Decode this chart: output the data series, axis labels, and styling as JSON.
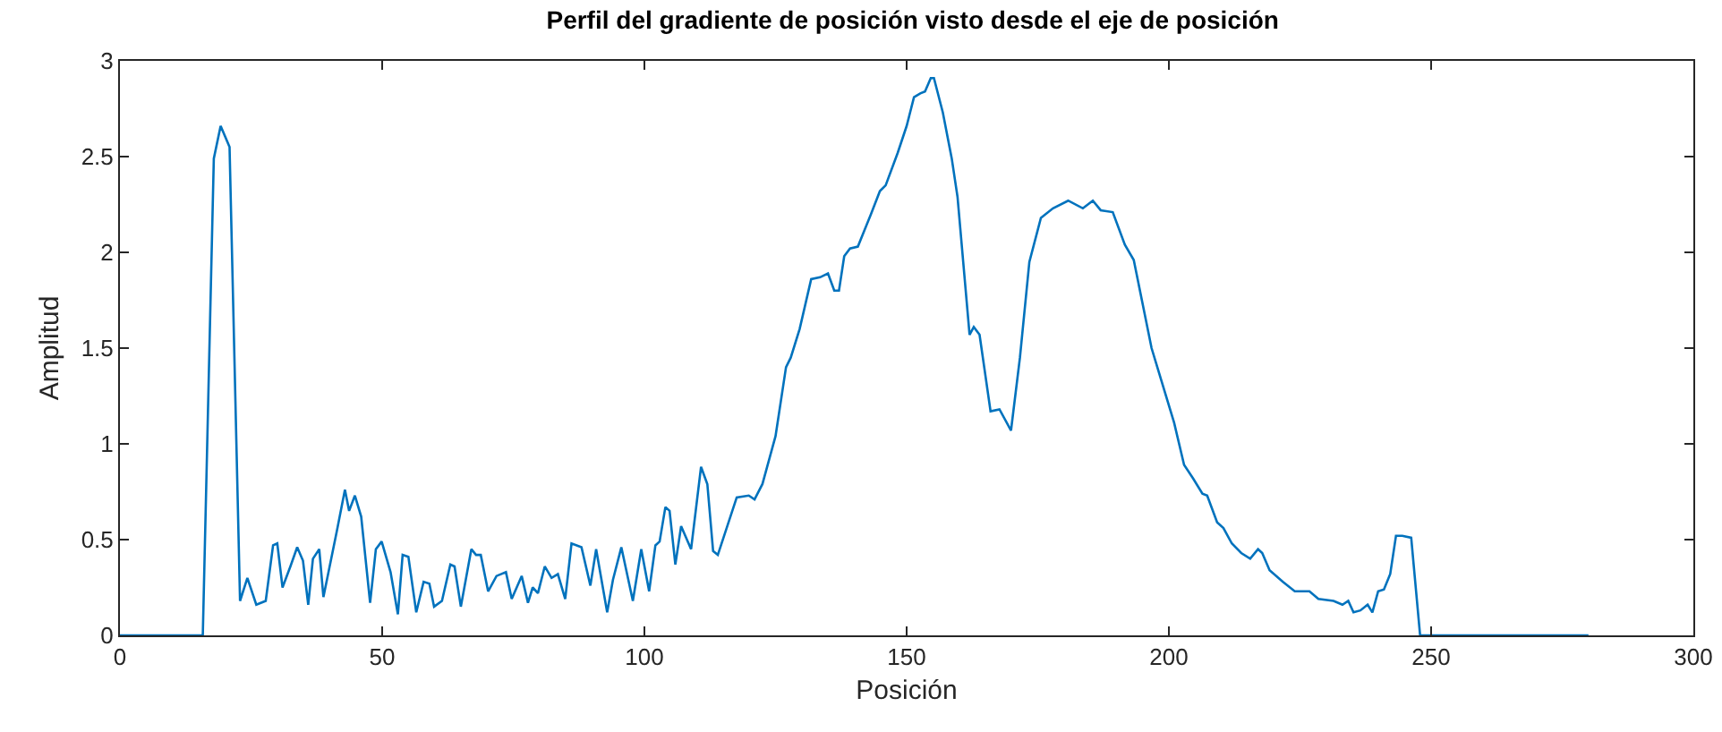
{
  "chart_data": {
    "type": "line",
    "title": "Perfil del gradiente de posición visto desde el eje de posición",
    "xlabel": "Posición",
    "ylabel": "Amplitud",
    "xlim": [
      0,
      300
    ],
    "xticks": [
      0,
      50,
      100,
      150,
      200,
      250,
      300
    ],
    "ylim": [
      0,
      3
    ],
    "yticks": [
      0,
      0.5,
      1,
      1.5,
      2,
      2.5,
      3
    ],
    "grid": false,
    "marker": "none",
    "line_style": "solid",
    "series": [
      {
        "color": "#0072bd",
        "x": [
          0,
          15.8,
          17.9,
          19.2,
          20.9,
          22.9,
          24.3,
          26,
          27.8,
          29.2,
          30,
          31,
          32.5,
          33.8,
          34.9,
          35.9,
          36.8,
          38,
          38.8,
          41.4,
          42.9,
          43.7,
          44.8,
          46,
          47.7,
          48.8,
          49.9,
          51.6,
          53,
          53.9,
          55,
          56.5,
          57.9,
          59,
          59.9,
          61.4,
          63,
          63.8,
          65,
          67,
          67.9,
          68.8,
          70.2,
          71.8,
          73.6,
          74.7,
          76.6,
          77.8,
          78.7,
          79.7,
          81,
          82.3,
          83.5,
          84.9,
          86.1,
          88,
          89.7,
          90.8,
          92.9,
          94,
          95.6,
          97.8,
          99.4,
          100.9,
          102.1,
          102.9,
          104,
          104.8,
          105.9,
          107,
          108.9,
          110.8,
          112,
          113.1,
          114,
          117.6,
          119.9,
          121,
          122.5,
          125,
          127,
          127.9,
          129.6,
          131.8,
          133.5,
          135,
          136.2,
          137.1,
          138.1,
          139.2,
          140.7,
          143.2,
          144.9,
          146,
          148.3,
          150,
          151.4,
          152.6,
          153.5,
          154.6,
          155.2,
          156.9,
          158.6,
          159.7,
          162,
          162.8,
          163.9,
          166,
          167.7,
          169.9,
          171.6,
          173.4,
          175.6,
          177.9,
          180.8,
          183.6,
          185.5,
          187,
          189.3,
          191.6,
          193.3,
          196.7,
          197.8,
          201,
          202.9,
          204.6,
          206.4,
          207.3,
          209.2,
          210.4,
          212,
          213.8,
          215.5,
          217,
          217.8,
          219.2,
          221.7,
          224,
          225.7,
          226.8,
          228.5,
          231.4,
          233.1,
          234.2,
          235.2,
          236.5,
          237.9,
          238.8,
          239.9,
          241,
          242.2,
          243.3,
          244.5,
          246.2,
          247.9,
          280
        ],
        "values": [
          0,
          0,
          2.49,
          2.66,
          2.55,
          0.18,
          0.3,
          0.16,
          0.18,
          0.47,
          0.48,
          0.25,
          0.36,
          0.46,
          0.39,
          0.16,
          0.4,
          0.45,
          0.2,
          0.55,
          0.76,
          0.65,
          0.73,
          0.62,
          0.17,
          0.45,
          0.49,
          0.33,
          0.11,
          0.42,
          0.41,
          0.12,
          0.28,
          0.27,
          0.15,
          0.18,
          0.37,
          0.36,
          0.15,
          0.45,
          0.42,
          0.42,
          0.23,
          0.31,
          0.33,
          0.19,
          0.31,
          0.17,
          0.25,
          0.22,
          0.36,
          0.3,
          0.32,
          0.19,
          0.48,
          0.46,
          0.26,
          0.45,
          0.12,
          0.29,
          0.46,
          0.18,
          0.45,
          0.23,
          0.47,
          0.49,
          0.67,
          0.65,
          0.37,
          0.57,
          0.45,
          0.88,
          0.79,
          0.44,
          0.42,
          0.72,
          0.73,
          0.71,
          0.79,
          1.04,
          1.4,
          1.45,
          1.6,
          1.86,
          1.87,
          1.89,
          1.8,
          1.8,
          1.98,
          2.02,
          2.03,
          2.2,
          2.32,
          2.35,
          2.52,
          2.66,
          2.81,
          2.83,
          2.84,
          2.91,
          2.91,
          2.73,
          2.49,
          2.29,
          1.57,
          1.61,
          1.57,
          1.17,
          1.18,
          1.07,
          1.45,
          1.95,
          2.18,
          2.23,
          2.27,
          2.23,
          2.27,
          2.22,
          2.21,
          2.04,
          1.96,
          1.5,
          1.4,
          1.11,
          0.89,
          0.82,
          0.74,
          0.73,
          0.59,
          0.56,
          0.48,
          0.43,
          0.4,
          0.45,
          0.43,
          0.34,
          0.28,
          0.23,
          0.23,
          0.23,
          0.19,
          0.18,
          0.16,
          0.18,
          0.12,
          0.13,
          0.16,
          0.12,
          0.23,
          0.24,
          0.32,
          0.52,
          0.52,
          0.51,
          0,
          0
        ]
      }
    ]
  }
}
